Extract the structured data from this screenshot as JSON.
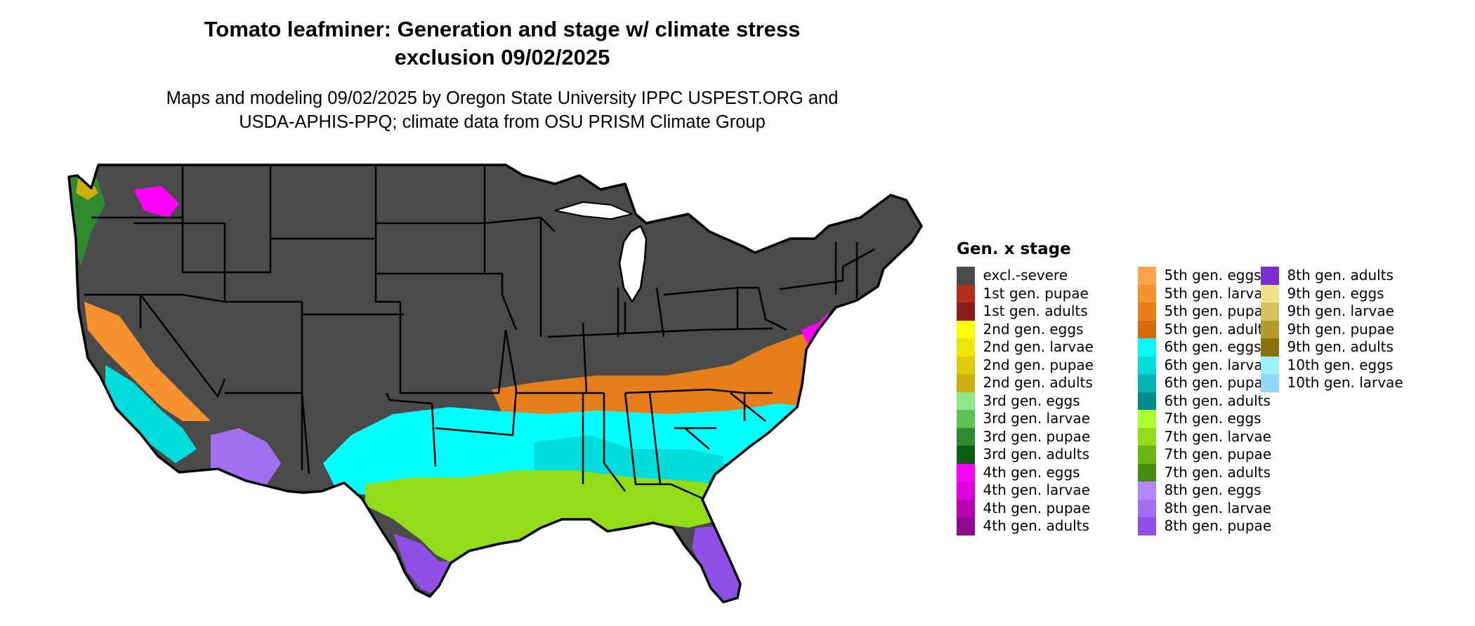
{
  "title": {
    "line1": "Tomato leafminer: Generation and stage w/ climate stress",
    "line2": "exclusion 09/02/2025"
  },
  "subtitle": {
    "line1": "Maps and modeling 09/02/2025 by Oregon State University IPPC USPEST.ORG and",
    "line2": "USDA-APHIS-PPQ; climate data from OSU PRISM Climate Group"
  },
  "map": {
    "background_color": "#ffffff",
    "excluded_color": "#4a4a4a",
    "outline_color": "#000000"
  },
  "legend": {
    "title": "Gen. x stage",
    "items": [
      {
        "label": "excl.-severe",
        "color": "#4a4a4a"
      },
      {
        "label": "1st gen. pupae",
        "color": "#b22f1a"
      },
      {
        "label": "1st gen. adults",
        "color": "#8b1c1c"
      },
      {
        "label": "2nd gen. eggs",
        "color": "#ffff00"
      },
      {
        "label": "2nd gen. larvae",
        "color": "#eee600"
      },
      {
        "label": "2nd gen. pupae",
        "color": "#dfcc0c"
      },
      {
        "label": "2nd gen. adults",
        "color": "#cfb011"
      },
      {
        "label": "3rd gen. eggs",
        "color": "#8ee88b"
      },
      {
        "label": "3rd gen. larvae",
        "color": "#5cc157"
      },
      {
        "label": "3rd gen. pupae",
        "color": "#2e8b2e"
      },
      {
        "label": "3rd gen. adults",
        "color": "#0b5e12"
      },
      {
        "label": "4th gen. eggs",
        "color": "#ff00ff"
      },
      {
        "label": "4th gen. larvae",
        "color": "#dd00dd"
      },
      {
        "label": "4th gen. pupae",
        "color": "#b800b0"
      },
      {
        "label": "4th gen. adults",
        "color": "#8e0a8e"
      },
      {
        "label": "5th gen. eggs",
        "color": "#ffa64d"
      },
      {
        "label": "5th gen. larvae",
        "color": "#f5922f"
      },
      {
        "label": "5th gen. pupae",
        "color": "#e67e1c"
      },
      {
        "label": "5th gen. adults",
        "color": "#d46a0d"
      },
      {
        "label": "6th gen. eggs",
        "color": "#00ffff"
      },
      {
        "label": "6th gen. larvae",
        "color": "#00dcdc"
      },
      {
        "label": "6th gen. pupae",
        "color": "#00b5b5"
      },
      {
        "label": "6th gen. adults",
        "color": "#008b8b"
      },
      {
        "label": "7th gen. eggs",
        "color": "#adff2f"
      },
      {
        "label": "7th gen. larvae",
        "color": "#92dc1a"
      },
      {
        "label": "7th gen. pupae",
        "color": "#6bb510"
      },
      {
        "label": "7th gen. adults",
        "color": "#468a0e"
      },
      {
        "label": "8th gen. eggs",
        "color": "#b388ff"
      },
      {
        "label": "8th gen. larvae",
        "color": "#a070f0"
      },
      {
        "label": "8th gen. pupae",
        "color": "#9050e6"
      },
      {
        "label": "8th gen. adults",
        "color": "#7b2dcf"
      },
      {
        "label": "9th gen. eggs",
        "color": "#efe08a"
      },
      {
        "label": "9th gen. larvae",
        "color": "#d6c060"
      },
      {
        "label": "9th gen. pupae",
        "color": "#b59a2e"
      },
      {
        "label": "9th gen. adults",
        "color": "#8a6f0a"
      },
      {
        "label": "10th gen. eggs",
        "color": "#9cf2ff"
      },
      {
        "label": "10th gen. larvae",
        "color": "#8fd8f8"
      }
    ]
  }
}
